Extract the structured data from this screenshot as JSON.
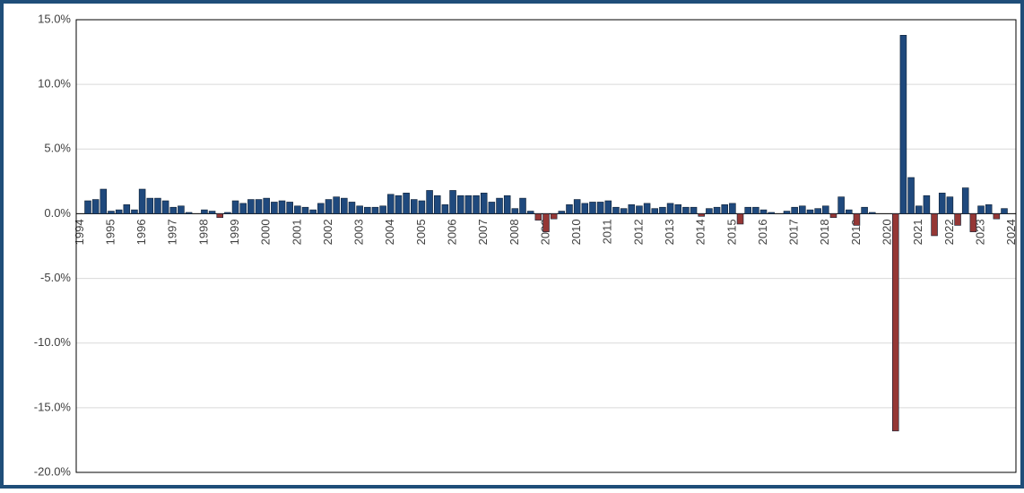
{
  "chart_data": {
    "type": "bar",
    "categories": [
      "1994",
      null,
      null,
      null,
      "1995",
      null,
      null,
      null,
      "1996",
      null,
      null,
      null,
      "1997",
      null,
      null,
      null,
      "1998",
      null,
      null,
      null,
      "1999",
      null,
      null,
      null,
      "2000",
      null,
      null,
      null,
      "2001",
      null,
      null,
      null,
      "2002",
      null,
      null,
      null,
      "2003",
      null,
      null,
      null,
      "2004",
      null,
      null,
      null,
      "2005",
      null,
      null,
      null,
      "2006",
      null,
      null,
      null,
      "2007",
      null,
      null,
      null,
      "2008",
      null,
      null,
      null,
      "2009",
      null,
      null,
      null,
      "2010",
      null,
      null,
      null,
      "2011",
      null,
      null,
      null,
      "2012",
      null,
      null,
      null,
      "2013",
      null,
      null,
      null,
      "2014",
      null,
      null,
      null,
      "2015",
      null,
      null,
      null,
      "2016",
      null,
      null,
      null,
      "2017",
      null,
      null,
      null,
      "2018",
      null,
      null,
      null,
      "2019",
      null,
      null,
      null,
      "2020",
      null,
      null,
      null,
      "2021",
      null,
      null,
      null,
      "2022",
      null,
      null,
      null,
      "2023",
      null,
      null,
      null,
      "2024"
    ],
    "values": [
      0,
      1.0,
      1.1,
      1.9,
      0.2,
      0.3,
      0.7,
      0.3,
      1.9,
      1.2,
      1.2,
      1.0,
      0.5,
      0.6,
      0.1,
      0.0,
      0.3,
      0.2,
      -0.3,
      0.1,
      1.0,
      0.8,
      1.1,
      1.1,
      1.2,
      0.9,
      1.0,
      0.9,
      0.6,
      0.5,
      0.3,
      0.8,
      1.1,
      1.3,
      1.2,
      0.9,
      0.6,
      0.5,
      0.5,
      0.6,
      1.5,
      1.4,
      1.6,
      1.1,
      1.0,
      1.8,
      1.4,
      0.7,
      1.8,
      1.4,
      1.4,
      1.4,
      1.6,
      0.9,
      1.2,
      1.4,
      0.4,
      1.2,
      0.2,
      -0.5,
      -1.4,
      -0.4,
      0.2,
      0.7,
      1.1,
      0.8,
      0.9,
      0.9,
      1.0,
      0.5,
      0.4,
      0.7,
      0.6,
      0.8,
      0.4,
      0.5,
      0.8,
      0.7,
      0.5,
      0.5,
      -0.2,
      0.4,
      0.5,
      0.7,
      0.8,
      -0.8,
      0.5,
      0.5,
      0.3,
      0.1,
      0.0,
      0.2,
      0.5,
      0.6,
      0.3,
      0.4,
      0.6,
      -0.3,
      1.3,
      0.3,
      -0.9,
      0.5,
      0.1,
      0.0,
      0.0,
      -16.8,
      13.8,
      2.8,
      0.6,
      1.4,
      -1.7,
      1.6,
      1.3,
      -0.9,
      2.0,
      -1.4,
      0.6,
      0.7,
      -0.4,
      0.4,
      0
    ],
    "color": "#1f497d",
    "negative_color": "#953735",
    "ylim": [
      -20,
      15
    ],
    "yticks": [
      {
        "value": -20,
        "label": "-20.0%"
      },
      {
        "value": -15,
        "label": "-15.0%"
      },
      {
        "value": -10,
        "label": "-10.0%"
      },
      {
        "value": -5,
        "label": "-5.0%"
      },
      {
        "value": 0,
        "label": "0.0%"
      },
      {
        "value": 5,
        "label": "5.0%"
      },
      {
        "value": 10,
        "label": "10.0%"
      },
      {
        "value": 15,
        "label": "15.0%"
      }
    ],
    "grid": true
  }
}
